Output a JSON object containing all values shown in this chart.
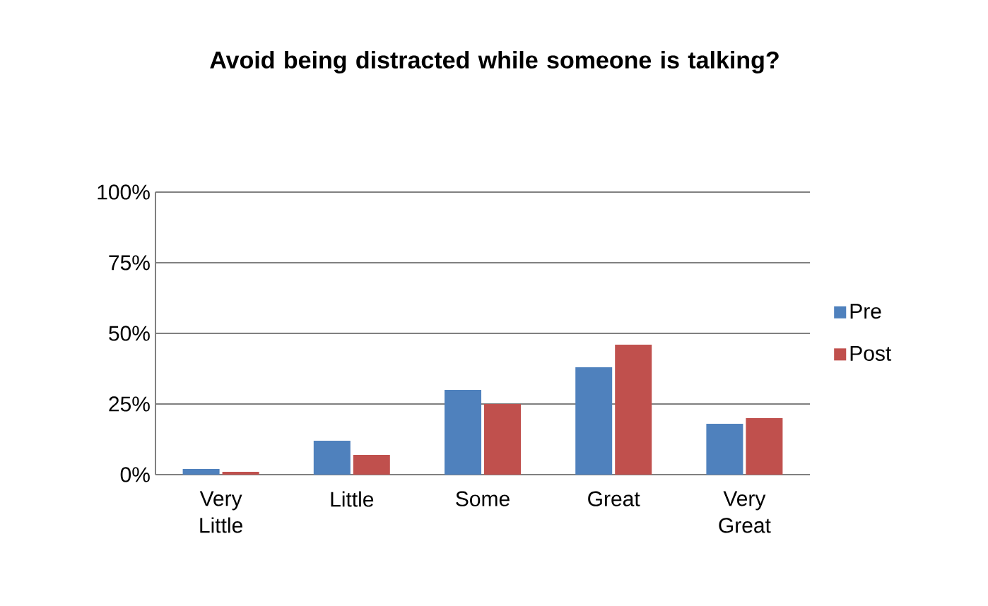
{
  "chart_data": {
    "type": "bar",
    "title": "Avoid being distracted while someone is talking?",
    "categories": [
      "Very Little",
      "Little",
      "Some",
      "Great",
      "Very Great"
    ],
    "series": [
      {
        "name": "Pre",
        "color": "#4f81bd",
        "values": [
          2,
          12,
          30,
          38,
          18
        ]
      },
      {
        "name": "Post",
        "color": "#c0504d",
        "values": [
          1,
          7,
          25,
          46,
          20
        ]
      }
    ],
    "ylim": [
      0,
      100
    ],
    "yticks": [
      {
        "value": 0,
        "label": "0%"
      },
      {
        "value": 25,
        "label": "25%"
      },
      {
        "value": 50,
        "label": "50%"
      },
      {
        "value": 75,
        "label": "75%"
      },
      {
        "value": 100,
        "label": "100%"
      }
    ],
    "grid": "y",
    "legend": "right"
  }
}
